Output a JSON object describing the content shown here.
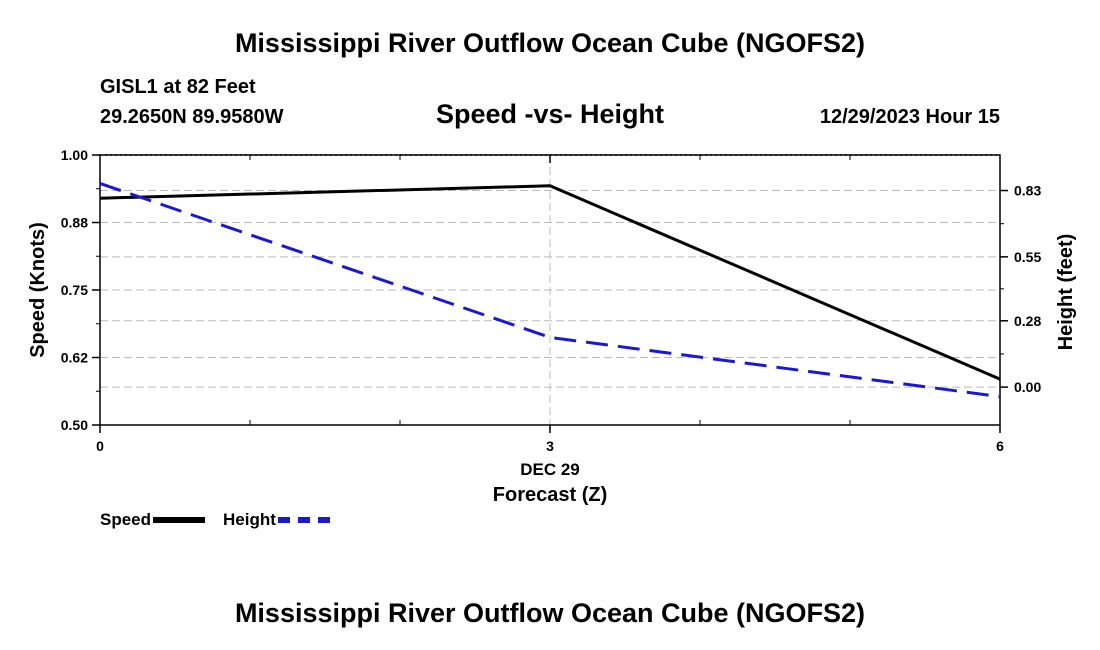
{
  "header": {
    "title": "Mississippi River Outflow Ocean Cube (NGOFS2)",
    "station": "GISL1 at 82 Feet",
    "coords": "29.2650N  89.9580W",
    "subtitle": "Speed -vs- Height",
    "datetime": "12/29/2023 Hour 15"
  },
  "footer": {
    "title": "Mississippi River Outflow Ocean Cube (NGOFS2)"
  },
  "chart_data": {
    "type": "line",
    "title": "Speed -vs- Height",
    "xlabel": "Forecast (Z)",
    "x_date_label": "DEC 29",
    "xlim": [
      0,
      6
    ],
    "x_ticks": [
      0,
      3,
      6
    ],
    "x_tick_labels": [
      "0",
      "3",
      "6"
    ],
    "y_left": {
      "label": "Speed (Knots)",
      "lim": [
        0.5,
        1.0
      ],
      "ticks": [
        0.5,
        0.625,
        0.75,
        0.875,
        1.0
      ],
      "tick_labels": [
        "0.50",
        "0.62",
        "0.75",
        "0.88",
        "1.00"
      ]
    },
    "y_right": {
      "label": "Height (feet)",
      "lim": [
        -0.16,
        0.98
      ],
      "ticks": [
        0.0,
        0.28,
        0.55,
        0.83
      ],
      "tick_labels": [
        "0.00",
        "0.28",
        "0.55",
        "0.83"
      ]
    },
    "grid": true,
    "legend_position": "bottom-left",
    "series": [
      {
        "name": "Speed",
        "axis": "left",
        "color": "#000000",
        "style": "solid",
        "x": [
          0,
          3,
          6
        ],
        "values": [
          0.92,
          0.943,
          0.585
        ]
      },
      {
        "name": "Height",
        "axis": "right",
        "color": "#1a1acc",
        "style": "dashed",
        "x": [
          0,
          3,
          6
        ],
        "values": [
          0.86,
          0.21,
          -0.04
        ]
      }
    ]
  }
}
